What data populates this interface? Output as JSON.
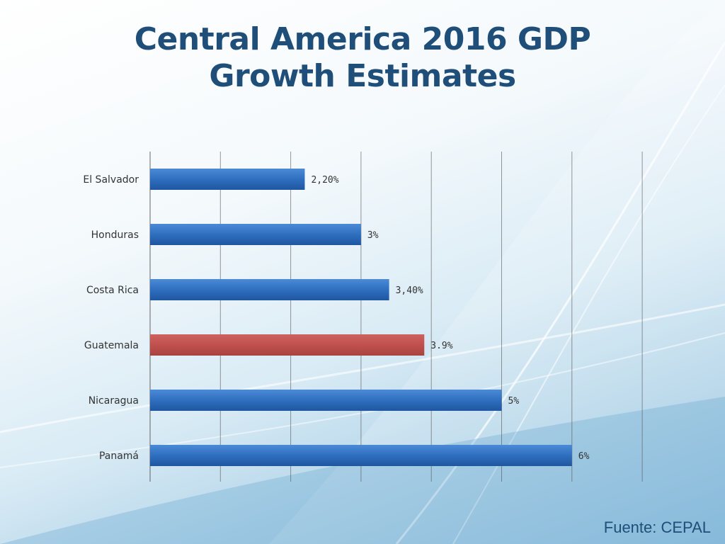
{
  "slide": {
    "title_line1": "Central America 2016 GDP",
    "title_line2": "Growth Estimates",
    "source": "Fuente: CEPAL"
  },
  "colors": {
    "title": "#1f4e79",
    "bar_default": "#2f6fbf",
    "bar_highlight": "#c0504d",
    "gridline": "#555555"
  },
  "chart_data": {
    "type": "bar",
    "orientation": "horizontal",
    "categories": [
      "El Salvador",
      "Honduras",
      "Costa Rica",
      "Guatemala",
      "Nicaragua",
      "Panamá"
    ],
    "values": [
      2.2,
      3,
      3.4,
      3.9,
      5,
      6
    ],
    "data_labels": [
      "2,20%",
      "3%",
      "3,40%",
      "3.9%",
      "5%",
      "6%"
    ],
    "highlight": [
      "Guatemala"
    ],
    "xlim": [
      0,
      7
    ],
    "grid": true,
    "title": "",
    "xlabel": "",
    "ylabel": ""
  }
}
